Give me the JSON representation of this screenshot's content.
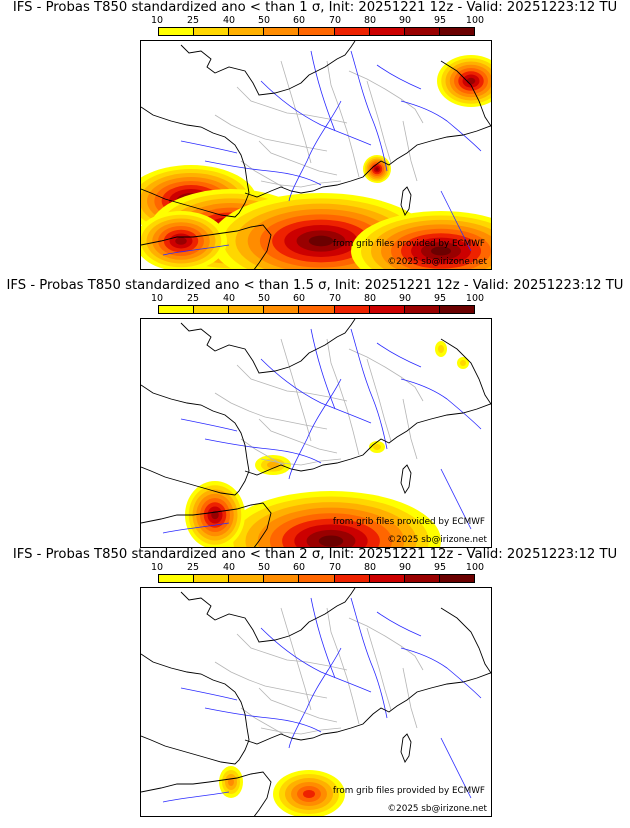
{
  "colors": {
    "scale": [
      "#ffff00",
      "#ffd700",
      "#ffb000",
      "#ff8c00",
      "#ff6600",
      "#ee2200",
      "#cc0000",
      "#990000",
      "#6b0000"
    ],
    "coast": "#000000",
    "rivers": "#2a2aff",
    "borders": "#b5b5b5"
  },
  "colorbar": {
    "ticks": [
      "10",
      "25",
      "40",
      "50",
      "60",
      "70",
      "80",
      "90",
      "95",
      "100"
    ]
  },
  "credits": {
    "grib": "from grib files provided by ECMWF",
    "copyright": "©2025 sb@irizone.net"
  },
  "panels": [
    {
      "title": "IFS - Probas T850  standardized ano < than 1 σ, Init: 20251221 12z - Valid: 20251223:12 TU",
      "intensity": "high"
    },
    {
      "title": "IFS - Probas T850  standardized ano < than 1.5 σ, Init: 20251221 12z - Valid: 20251223:12 TU",
      "intensity": "medium"
    },
    {
      "title": "IFS - Probas T850  standardized ano < than 2 σ, Init: 20251221 12z - Valid: 20251223:12 TU",
      "intensity": "low"
    }
  ]
}
